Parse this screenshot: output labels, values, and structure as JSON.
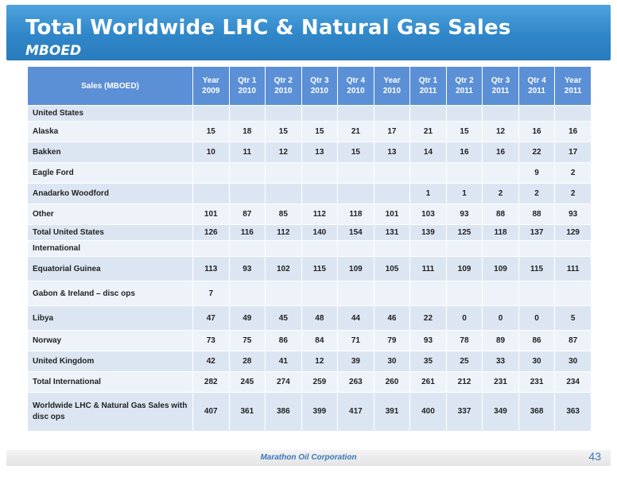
{
  "title": "Total Worldwide LHC & Natural Gas Sales",
  "subtitle": "MBOED",
  "table": {
    "sales_header": "Sales (MBOED)",
    "columns": [
      {
        "l1": "Year",
        "l2": "2009"
      },
      {
        "l1": "Qtr 1",
        "l2": "2010"
      },
      {
        "l1": "Qtr 2",
        "l2": "2010"
      },
      {
        "l1": "Qtr 3",
        "l2": "2010"
      },
      {
        "l1": "Qtr 4",
        "l2": "2010"
      },
      {
        "l1": "Year",
        "l2": "2010"
      },
      {
        "l1": "Qtr 1",
        "l2": "2011"
      },
      {
        "l1": "Qtr 2",
        "l2": "2011"
      },
      {
        "l1": "Qtr 3",
        "l2": "2011"
      },
      {
        "l1": "Qtr 4",
        "l2": "2011"
      },
      {
        "l1": "Year",
        "l2": "2011"
      }
    ],
    "rows": [
      {
        "label": "United States",
        "values": [
          "",
          "",
          "",
          "",
          "",
          "",
          "",
          "",
          "",
          "",
          ""
        ],
        "h": "h20"
      },
      {
        "label": "Alaska",
        "values": [
          "15",
          "18",
          "15",
          "15",
          "21",
          "17",
          "21",
          "15",
          "12",
          "16",
          "16"
        ],
        "h": "h26"
      },
      {
        "label": "Bakken",
        "values": [
          "10",
          "11",
          "12",
          "13",
          "15",
          "13",
          "14",
          "16",
          "16",
          "22",
          "17"
        ],
        "h": "h26"
      },
      {
        "label": "Eagle Ford",
        "values": [
          "",
          "",
          "",
          "",
          "",
          "",
          "",
          "",
          "",
          "9",
          "2"
        ],
        "h": "h26"
      },
      {
        "label": "Anadarko Woodford",
        "values": [
          "",
          "",
          "",
          "",
          "",
          "",
          "1",
          "1",
          "2",
          "2",
          "2"
        ],
        "h": "h26"
      },
      {
        "label": "Other",
        "values": [
          "101",
          "87",
          "85",
          "112",
          "118",
          "101",
          "103",
          "93",
          "88",
          "88",
          "93"
        ],
        "h": "h26"
      },
      {
        "label": "Total United States",
        "values": [
          "126",
          "116",
          "112",
          "140",
          "154",
          "131",
          "139",
          "125",
          "118",
          "137",
          "129"
        ],
        "h": "h20"
      },
      {
        "label": "International",
        "values": [
          "",
          "",
          "",
          "",
          "",
          "",
          "",
          "",
          "",
          "",
          ""
        ],
        "h": "h20"
      },
      {
        "label": "Equatorial Guinea",
        "values": [
          "113",
          "93",
          "102",
          "115",
          "109",
          "105",
          "111",
          "109",
          "109",
          "115",
          "111"
        ],
        "h": "h30"
      },
      {
        "label": "Gabon & Ireland – disc ops",
        "values": [
          "7",
          "",
          "",
          "",
          "",
          "",
          "",
          "",
          "",
          "",
          ""
        ],
        "h": "h30"
      },
      {
        "label": "Libya",
        "values": [
          "47",
          "49",
          "45",
          "48",
          "44",
          "46",
          "22",
          "0",
          "0",
          "0",
          "5"
        ],
        "h": "h30"
      },
      {
        "label": "Norway",
        "values": [
          "73",
          "75",
          "86",
          "84",
          "71",
          "79",
          "93",
          "78",
          "89",
          "86",
          "87"
        ],
        "h": "h26"
      },
      {
        "label": "United Kingdom",
        "values": [
          "42",
          "28",
          "41",
          "12",
          "39",
          "30",
          "35",
          "25",
          "33",
          "30",
          "30"
        ],
        "h": "h26"
      },
      {
        "label": "Total International",
        "values": [
          "282",
          "245",
          "274",
          "259",
          "263",
          "260",
          "261",
          "212",
          "231",
          "231",
          "234"
        ],
        "h": "h26"
      },
      {
        "label": "Worldwide LHC & Natural Gas Sales with disc ops",
        "values": [
          "407",
          "361",
          "386",
          "399",
          "417",
          "391",
          "400",
          "337",
          "349",
          "368",
          "363"
        ],
        "h": "h48"
      }
    ]
  },
  "footer": "Marathon Oil Corporation",
  "page_number": "43",
  "colors": {
    "banner": "#2f86c8",
    "header": "#5b8fd6",
    "row_dark": "#dce6f3",
    "row_light": "#eef3f9",
    "footer_text": "#3a78b8"
  }
}
